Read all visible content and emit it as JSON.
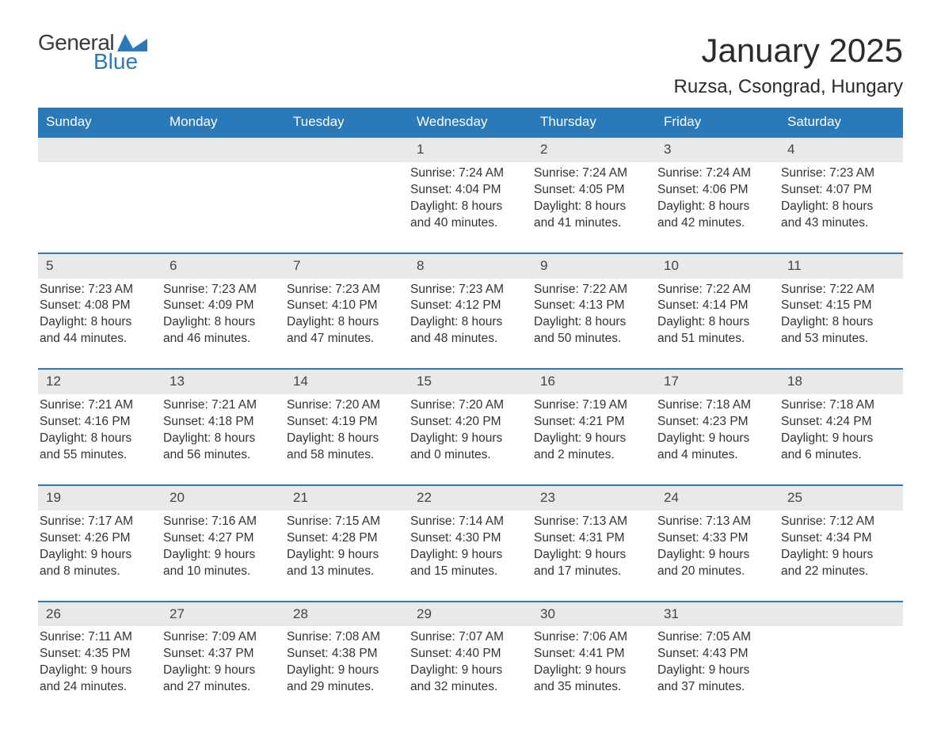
{
  "brand": {
    "word1": "General",
    "word2": "Blue",
    "icon_color": "#2a79b8"
  },
  "header": {
    "month_title": "January 2025",
    "location": "Ruzsa, Csongrad, Hungary"
  },
  "colors": {
    "header_bg": "#2a79b8",
    "header_text": "#ffffff",
    "daynum_bg": "#e9e9e9",
    "border": "#2a79b8",
    "body_text": "#333333",
    "page_bg": "#ffffff"
  },
  "typography": {
    "month_title_fontsize": 42,
    "location_fontsize": 24,
    "dayheader_fontsize": 17,
    "cell_fontsize": 15.5
  },
  "day_headers": [
    "Sunday",
    "Monday",
    "Tuesday",
    "Wednesday",
    "Thursday",
    "Friday",
    "Saturday"
  ],
  "weeks": [
    [
      null,
      null,
      null,
      {
        "day": "1",
        "sunrise": "Sunrise: 7:24 AM",
        "sunset": "Sunset: 4:04 PM",
        "dl1": "Daylight: 8 hours",
        "dl2": "and 40 minutes."
      },
      {
        "day": "2",
        "sunrise": "Sunrise: 7:24 AM",
        "sunset": "Sunset: 4:05 PM",
        "dl1": "Daylight: 8 hours",
        "dl2": "and 41 minutes."
      },
      {
        "day": "3",
        "sunrise": "Sunrise: 7:24 AM",
        "sunset": "Sunset: 4:06 PM",
        "dl1": "Daylight: 8 hours",
        "dl2": "and 42 minutes."
      },
      {
        "day": "4",
        "sunrise": "Sunrise: 7:23 AM",
        "sunset": "Sunset: 4:07 PM",
        "dl1": "Daylight: 8 hours",
        "dl2": "and 43 minutes."
      }
    ],
    [
      {
        "day": "5",
        "sunrise": "Sunrise: 7:23 AM",
        "sunset": "Sunset: 4:08 PM",
        "dl1": "Daylight: 8 hours",
        "dl2": "and 44 minutes."
      },
      {
        "day": "6",
        "sunrise": "Sunrise: 7:23 AM",
        "sunset": "Sunset: 4:09 PM",
        "dl1": "Daylight: 8 hours",
        "dl2": "and 46 minutes."
      },
      {
        "day": "7",
        "sunrise": "Sunrise: 7:23 AM",
        "sunset": "Sunset: 4:10 PM",
        "dl1": "Daylight: 8 hours",
        "dl2": "and 47 minutes."
      },
      {
        "day": "8",
        "sunrise": "Sunrise: 7:23 AM",
        "sunset": "Sunset: 4:12 PM",
        "dl1": "Daylight: 8 hours",
        "dl2": "and 48 minutes."
      },
      {
        "day": "9",
        "sunrise": "Sunrise: 7:22 AM",
        "sunset": "Sunset: 4:13 PM",
        "dl1": "Daylight: 8 hours",
        "dl2": "and 50 minutes."
      },
      {
        "day": "10",
        "sunrise": "Sunrise: 7:22 AM",
        "sunset": "Sunset: 4:14 PM",
        "dl1": "Daylight: 8 hours",
        "dl2": "and 51 minutes."
      },
      {
        "day": "11",
        "sunrise": "Sunrise: 7:22 AM",
        "sunset": "Sunset: 4:15 PM",
        "dl1": "Daylight: 8 hours",
        "dl2": "and 53 minutes."
      }
    ],
    [
      {
        "day": "12",
        "sunrise": "Sunrise: 7:21 AM",
        "sunset": "Sunset: 4:16 PM",
        "dl1": "Daylight: 8 hours",
        "dl2": "and 55 minutes."
      },
      {
        "day": "13",
        "sunrise": "Sunrise: 7:21 AM",
        "sunset": "Sunset: 4:18 PM",
        "dl1": "Daylight: 8 hours",
        "dl2": "and 56 minutes."
      },
      {
        "day": "14",
        "sunrise": "Sunrise: 7:20 AM",
        "sunset": "Sunset: 4:19 PM",
        "dl1": "Daylight: 8 hours",
        "dl2": "and 58 minutes."
      },
      {
        "day": "15",
        "sunrise": "Sunrise: 7:20 AM",
        "sunset": "Sunset: 4:20 PM",
        "dl1": "Daylight: 9 hours",
        "dl2": "and 0 minutes."
      },
      {
        "day": "16",
        "sunrise": "Sunrise: 7:19 AM",
        "sunset": "Sunset: 4:21 PM",
        "dl1": "Daylight: 9 hours",
        "dl2": "and 2 minutes."
      },
      {
        "day": "17",
        "sunrise": "Sunrise: 7:18 AM",
        "sunset": "Sunset: 4:23 PM",
        "dl1": "Daylight: 9 hours",
        "dl2": "and 4 minutes."
      },
      {
        "day": "18",
        "sunrise": "Sunrise: 7:18 AM",
        "sunset": "Sunset: 4:24 PM",
        "dl1": "Daylight: 9 hours",
        "dl2": "and 6 minutes."
      }
    ],
    [
      {
        "day": "19",
        "sunrise": "Sunrise: 7:17 AM",
        "sunset": "Sunset: 4:26 PM",
        "dl1": "Daylight: 9 hours",
        "dl2": "and 8 minutes."
      },
      {
        "day": "20",
        "sunrise": "Sunrise: 7:16 AM",
        "sunset": "Sunset: 4:27 PM",
        "dl1": "Daylight: 9 hours",
        "dl2": "and 10 minutes."
      },
      {
        "day": "21",
        "sunrise": "Sunrise: 7:15 AM",
        "sunset": "Sunset: 4:28 PM",
        "dl1": "Daylight: 9 hours",
        "dl2": "and 13 minutes."
      },
      {
        "day": "22",
        "sunrise": "Sunrise: 7:14 AM",
        "sunset": "Sunset: 4:30 PM",
        "dl1": "Daylight: 9 hours",
        "dl2": "and 15 minutes."
      },
      {
        "day": "23",
        "sunrise": "Sunrise: 7:13 AM",
        "sunset": "Sunset: 4:31 PM",
        "dl1": "Daylight: 9 hours",
        "dl2": "and 17 minutes."
      },
      {
        "day": "24",
        "sunrise": "Sunrise: 7:13 AM",
        "sunset": "Sunset: 4:33 PM",
        "dl1": "Daylight: 9 hours",
        "dl2": "and 20 minutes."
      },
      {
        "day": "25",
        "sunrise": "Sunrise: 7:12 AM",
        "sunset": "Sunset: 4:34 PM",
        "dl1": "Daylight: 9 hours",
        "dl2": "and 22 minutes."
      }
    ],
    [
      {
        "day": "26",
        "sunrise": "Sunrise: 7:11 AM",
        "sunset": "Sunset: 4:35 PM",
        "dl1": "Daylight: 9 hours",
        "dl2": "and 24 minutes."
      },
      {
        "day": "27",
        "sunrise": "Sunrise: 7:09 AM",
        "sunset": "Sunset: 4:37 PM",
        "dl1": "Daylight: 9 hours",
        "dl2": "and 27 minutes."
      },
      {
        "day": "28",
        "sunrise": "Sunrise: 7:08 AM",
        "sunset": "Sunset: 4:38 PM",
        "dl1": "Daylight: 9 hours",
        "dl2": "and 29 minutes."
      },
      {
        "day": "29",
        "sunrise": "Sunrise: 7:07 AM",
        "sunset": "Sunset: 4:40 PM",
        "dl1": "Daylight: 9 hours",
        "dl2": "and 32 minutes."
      },
      {
        "day": "30",
        "sunrise": "Sunrise: 7:06 AM",
        "sunset": "Sunset: 4:41 PM",
        "dl1": "Daylight: 9 hours",
        "dl2": "and 35 minutes."
      },
      {
        "day": "31",
        "sunrise": "Sunrise: 7:05 AM",
        "sunset": "Sunset: 4:43 PM",
        "dl1": "Daylight: 9 hours",
        "dl2": "and 37 minutes."
      },
      null
    ]
  ]
}
